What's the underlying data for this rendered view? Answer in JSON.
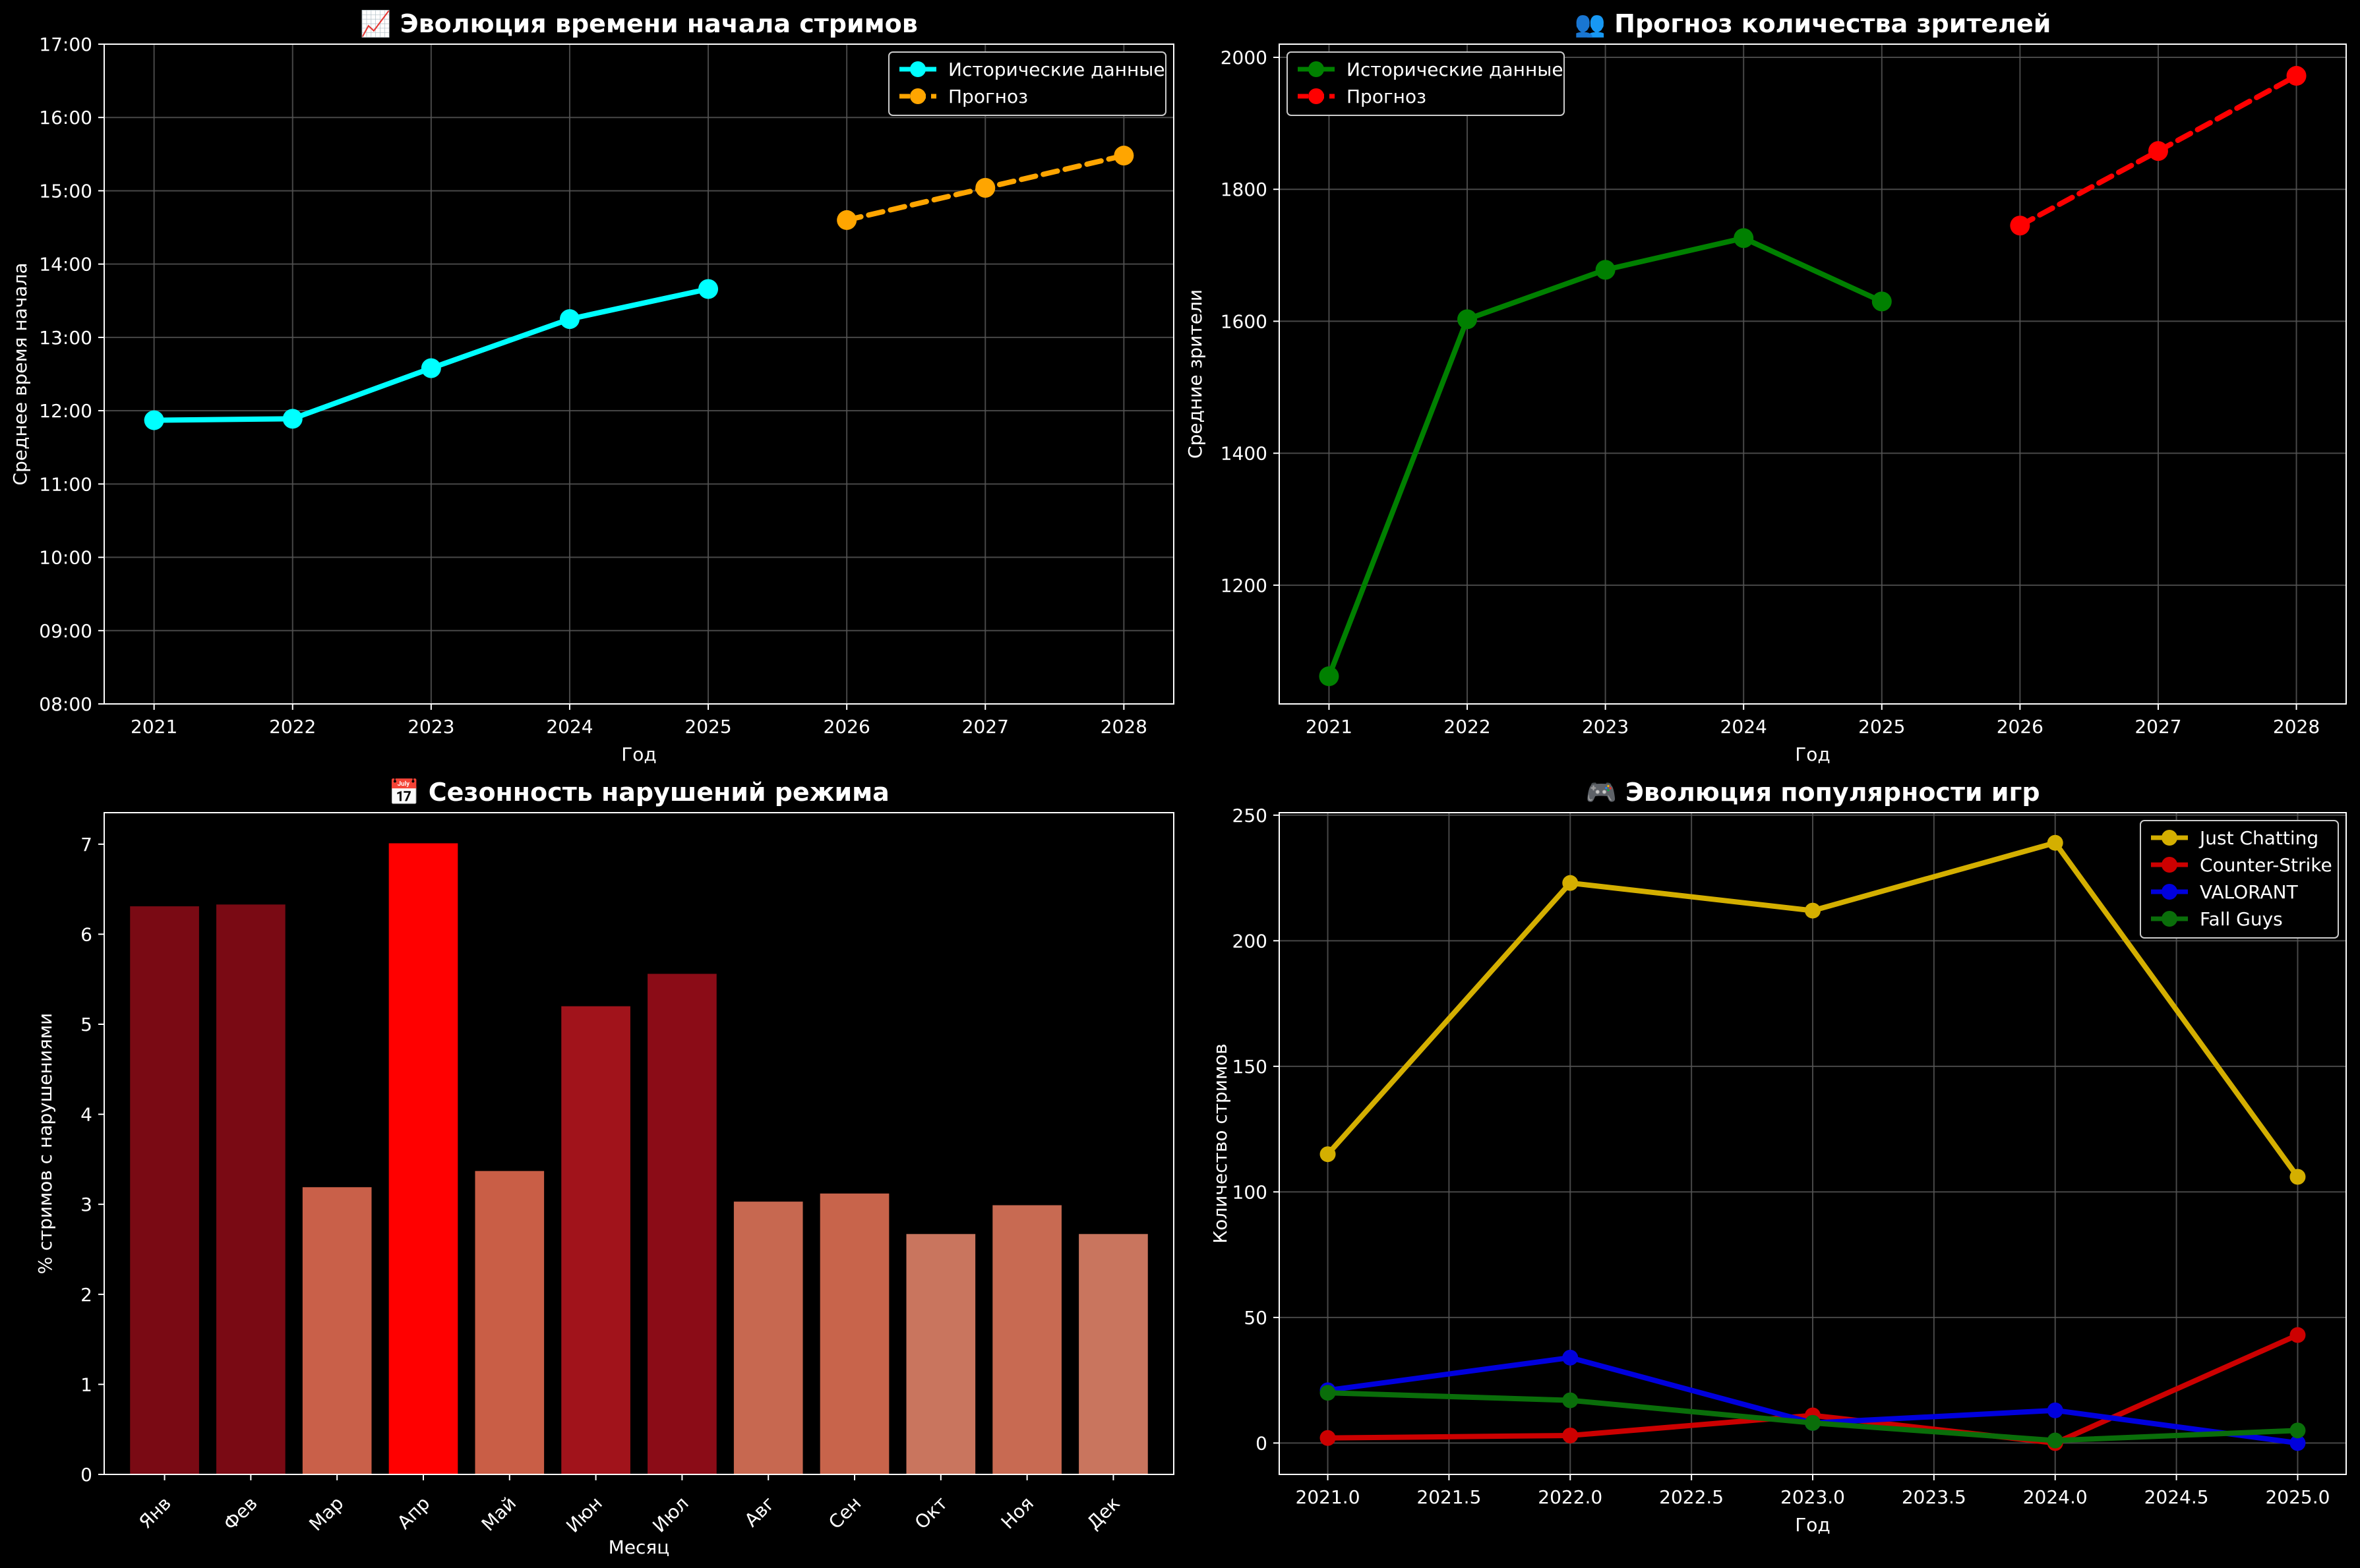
{
  "chart_data": [
    {
      "type": "line",
      "title": "📈 Эволюция времени начала стримов",
      "xlabel": "Год",
      "ylabel": "Среднее время начала",
      "ylim": [
        8,
        17
      ],
      "y_ticks": [
        "08:00",
        "09:00",
        "10:00",
        "11:00",
        "12:00",
        "13:00",
        "14:00",
        "15:00",
        "16:00",
        "17:00"
      ],
      "x_ticks": [
        "2021",
        "2022",
        "2023",
        "2024",
        "2025",
        "2026",
        "2027",
        "2028"
      ],
      "grid": true,
      "legend_position": "top-right",
      "series": [
        {
          "name": "Исторические данные",
          "color": "#00FFFF",
          "dashed": false,
          "x": [
            2021,
            2022,
            2023,
            2024,
            2025
          ],
          "y": [
            11.87,
            11.89,
            12.58,
            13.25,
            13.66
          ]
        },
        {
          "name": "Прогноз",
          "color": "#FFA500",
          "dashed": true,
          "x": [
            2026,
            2027,
            2028
          ],
          "y": [
            14.6,
            15.04,
            15.48
          ]
        }
      ]
    },
    {
      "type": "line",
      "title": "👥 Прогноз количества зрителей",
      "xlabel": "Год",
      "ylabel": "Средние зрители",
      "ylim": [
        1020,
        2020
      ],
      "y_ticks": [
        "1200",
        "1400",
        "1600",
        "1800",
        "2000"
      ],
      "x_ticks": [
        "2021",
        "2022",
        "2023",
        "2024",
        "2025",
        "2026",
        "2027",
        "2028"
      ],
      "grid": true,
      "legend_position": "top-left",
      "series": [
        {
          "name": "Исторические данные",
          "color": "#008000",
          "dashed": false,
          "x": [
            2021,
            2022,
            2023,
            2024,
            2025
          ],
          "y": [
            1062,
            1603,
            1678,
            1726,
            1630
          ]
        },
        {
          "name": "Прогноз",
          "color": "#FF0000",
          "dashed": true,
          "x": [
            2026,
            2027,
            2028
          ],
          "y": [
            1745,
            1858,
            1972
          ]
        }
      ]
    },
    {
      "type": "bar",
      "title": "📅 Сезонность нарушений режима",
      "xlabel": "Месяц",
      "ylabel": "% стримов с нарушениями",
      "ylim": [
        0,
        7.35
      ],
      "y_ticks": [
        "0",
        "1",
        "2",
        "3",
        "4",
        "5",
        "6",
        "7"
      ],
      "grid": false,
      "categories": [
        "Янв",
        "Фев",
        "Мар",
        "Апр",
        "Май",
        "Июн",
        "Июл",
        "Авг",
        "Сен",
        "Окт",
        "Ноя",
        "Дек"
      ],
      "values": [
        6.31,
        6.33,
        3.19,
        7.01,
        3.37,
        5.2,
        5.56,
        3.03,
        3.12,
        2.67,
        2.99,
        2.67
      ],
      "colors": [
        "#7A0A14",
        "#7A0A14",
        "#C96049",
        "#FF0000",
        "#C95E46",
        "#A1131B",
        "#8B0C17",
        "#C76850",
        "#C8644B",
        "#C9755E",
        "#C86A52",
        "#C9755E"
      ]
    },
    {
      "type": "line",
      "title": "🎮 Эволюция популярности игр",
      "xlabel": "Год",
      "ylabel": "Количество стримов",
      "ylim": [
        -12.5,
        251
      ],
      "x_ticks": [
        "2021.0",
        "2021.5",
        "2022.0",
        "2022.5",
        "2023.0",
        "2023.5",
        "2024.0",
        "2024.5",
        "2025.0"
      ],
      "y_ticks": [
        "0",
        "50",
        "100",
        "150",
        "200",
        "250"
      ],
      "grid": true,
      "legend_position": "top-right",
      "series": [
        {
          "name": "Just Chatting",
          "color": "#D4AF00",
          "x": [
            2021,
            2022,
            2023,
            2024,
            2025
          ],
          "y": [
            115,
            223,
            212,
            239,
            106
          ]
        },
        {
          "name": "Counter-Strike",
          "color": "#CC0000",
          "x": [
            2021,
            2022,
            2023,
            2024,
            2025
          ],
          "y": [
            2,
            3,
            11,
            0,
            43
          ]
        },
        {
          "name": "VALORANT",
          "color": "#0000DD",
          "x": [
            2021,
            2022,
            2023,
            2024,
            2025
          ],
          "y": [
            21,
            34,
            8,
            13,
            0
          ]
        },
        {
          "name": "Fall Guys",
          "color": "#0A6E0A",
          "x": [
            2021,
            2022,
            2023,
            2024,
            2025
          ],
          "y": [
            20,
            17,
            8,
            1,
            5
          ]
        }
      ]
    }
  ]
}
